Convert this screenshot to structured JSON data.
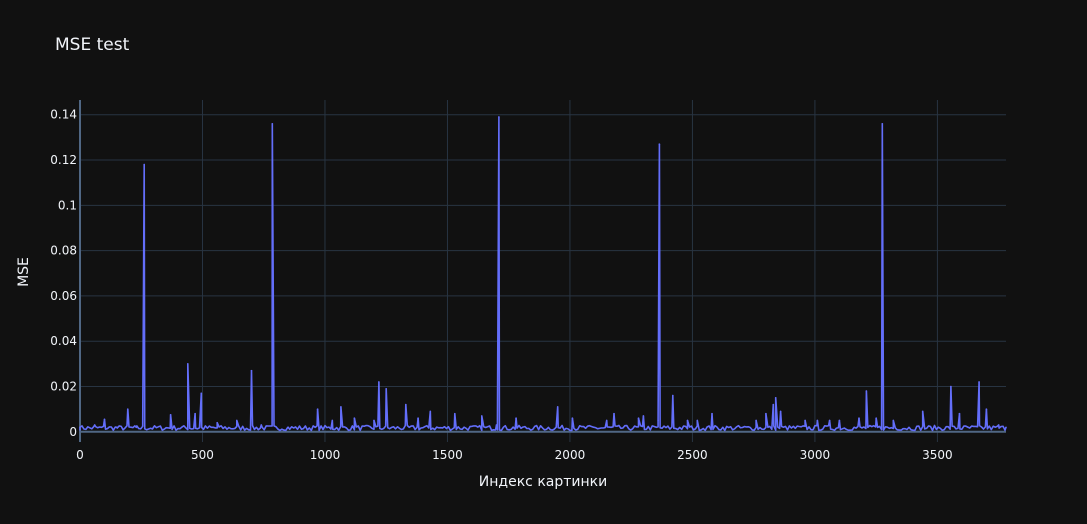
{
  "chart_data": {
    "type": "line",
    "title": "MSE test",
    "xlabel": "Индекс картинки",
    "ylabel": "MSE",
    "xlim": [
      0,
      3780
    ],
    "ylim": [
      -0.0045,
      0.1465
    ],
    "grid": true,
    "legend": "none",
    "line_color": "#636efa",
    "background_color": "#111111",
    "grid_color": "#283442",
    "x_ticks": [
      0,
      500,
      1000,
      1500,
      2000,
      2500,
      3000,
      3500
    ],
    "x_tick_labels": [
      "0",
      "500",
      "1000",
      "1500",
      "2000",
      "2500",
      "3000",
      "3500"
    ],
    "y_ticks": [
      0,
      0.02,
      0.04,
      0.06,
      0.08,
      0.1,
      0.12,
      0.14
    ],
    "y_tick_labels": [
      "0",
      "0.02",
      "0.04",
      "0.06",
      "0.08",
      "0.1",
      "0.12",
      "0.14"
    ],
    "points": [
      [
        0,
        0.002
      ],
      [
        60,
        0.003
      ],
      [
        100,
        0.0055
      ],
      [
        150,
        0.002
      ],
      [
        195,
        0.01
      ],
      [
        230,
        0.002
      ],
      [
        262,
        0.118
      ],
      [
        300,
        0.002
      ],
      [
        370,
        0.0075
      ],
      [
        440,
        0.03
      ],
      [
        470,
        0.008
      ],
      [
        495,
        0.017
      ],
      [
        560,
        0.004
      ],
      [
        640,
        0.005
      ],
      [
        700,
        0.027
      ],
      [
        740,
        0.003
      ],
      [
        785,
        0.136
      ],
      [
        850,
        0.002
      ],
      [
        970,
        0.01
      ],
      [
        1030,
        0.005
      ],
      [
        1065,
        0.011
      ],
      [
        1120,
        0.006
      ],
      [
        1200,
        0.005
      ],
      [
        1220,
        0.022
      ],
      [
        1250,
        0.019
      ],
      [
        1330,
        0.012
      ],
      [
        1380,
        0.006
      ],
      [
        1430,
        0.009
      ],
      [
        1530,
        0.008
      ],
      [
        1640,
        0.007
      ],
      [
        1700,
        0.003
      ],
      [
        1710,
        0.139
      ],
      [
        1780,
        0.006
      ],
      [
        1950,
        0.011
      ],
      [
        2010,
        0.006
      ],
      [
        2150,
        0.005
      ],
      [
        2180,
        0.008
      ],
      [
        2280,
        0.006
      ],
      [
        2300,
        0.007
      ],
      [
        2360,
        0.005
      ],
      [
        2365,
        0.127
      ],
      [
        2420,
        0.016
      ],
      [
        2480,
        0.005
      ],
      [
        2520,
        0.005
      ],
      [
        2580,
        0.008
      ],
      [
        2760,
        0.005
      ],
      [
        2800,
        0.008
      ],
      [
        2830,
        0.012
      ],
      [
        2840,
        0.015
      ],
      [
        2860,
        0.009
      ],
      [
        2960,
        0.005
      ],
      [
        3010,
        0.005
      ],
      [
        3060,
        0.005
      ],
      [
        3100,
        0.005
      ],
      [
        3180,
        0.006
      ],
      [
        3210,
        0.018
      ],
      [
        3250,
        0.006
      ],
      [
        3275,
        0.136
      ],
      [
        3320,
        0.005
      ],
      [
        3440,
        0.009
      ],
      [
        3555,
        0.02
      ],
      [
        3590,
        0.008
      ],
      [
        3670,
        0.022
      ],
      [
        3700,
        0.01
      ],
      [
        3750,
        0.003
      ],
      [
        3780,
        0.002
      ]
    ]
  }
}
